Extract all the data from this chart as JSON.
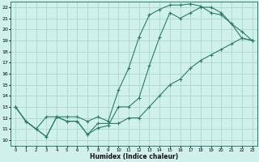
{
  "title": "",
  "xlabel": "Humidex (Indice chaleur)",
  "line_color": "#2d7d6b",
  "bg_color": "#cff0eb",
  "grid_color": "#aad8d0",
  "xlim": [
    -0.5,
    23.5
  ],
  "ylim": [
    9.5,
    22.5
  ],
  "yticks": [
    10,
    11,
    12,
    13,
    14,
    15,
    16,
    17,
    18,
    19,
    20,
    21,
    22
  ],
  "xticks": [
    0,
    1,
    2,
    3,
    4,
    5,
    6,
    7,
    8,
    9,
    10,
    11,
    12,
    13,
    14,
    15,
    16,
    17,
    18,
    19,
    20,
    21,
    22,
    23
  ],
  "line1_x": [
    0,
    1,
    2,
    3,
    4,
    5,
    6,
    7,
    8,
    9,
    10,
    11,
    12,
    13,
    14,
    15,
    16,
    17,
    18,
    19,
    20,
    21,
    22,
    23
  ],
  "line1_y": [
    13,
    11.7,
    11.0,
    10.3,
    12.1,
    11.7,
    11.7,
    10.5,
    11.1,
    11.3,
    13.0,
    13.0,
    13.8,
    16.7,
    19.3,
    21.5,
    21.0,
    21.5,
    22.0,
    22.0,
    21.5,
    20.5,
    19.2,
    19.0
  ],
  "line2_x": [
    0,
    1,
    2,
    3,
    4,
    5,
    6,
    7,
    8,
    9,
    10,
    11,
    12,
    13,
    14,
    15,
    16,
    17,
    18,
    19,
    20,
    21,
    22,
    23
  ],
  "line2_y": [
    13,
    11.7,
    11.0,
    12.1,
    12.1,
    12.1,
    12.1,
    11.7,
    12.1,
    11.7,
    14.5,
    16.5,
    19.3,
    21.3,
    21.8,
    22.2,
    22.2,
    22.3,
    22.1,
    21.5,
    21.3,
    20.5,
    19.8,
    19.0
  ],
  "line3_x": [
    0,
    1,
    2,
    3,
    4,
    5,
    6,
    7,
    8,
    9,
    10,
    11,
    12,
    13,
    14,
    15,
    16,
    17,
    18,
    19,
    20,
    21,
    22,
    23
  ],
  "line3_y": [
    13,
    11.7,
    11.0,
    10.3,
    12.1,
    11.7,
    11.7,
    10.5,
    11.5,
    11.5,
    11.5,
    12.0,
    12.0,
    13.0,
    14.0,
    15.0,
    15.5,
    16.5,
    17.2,
    17.7,
    18.2,
    18.7,
    19.2,
    19.0
  ]
}
